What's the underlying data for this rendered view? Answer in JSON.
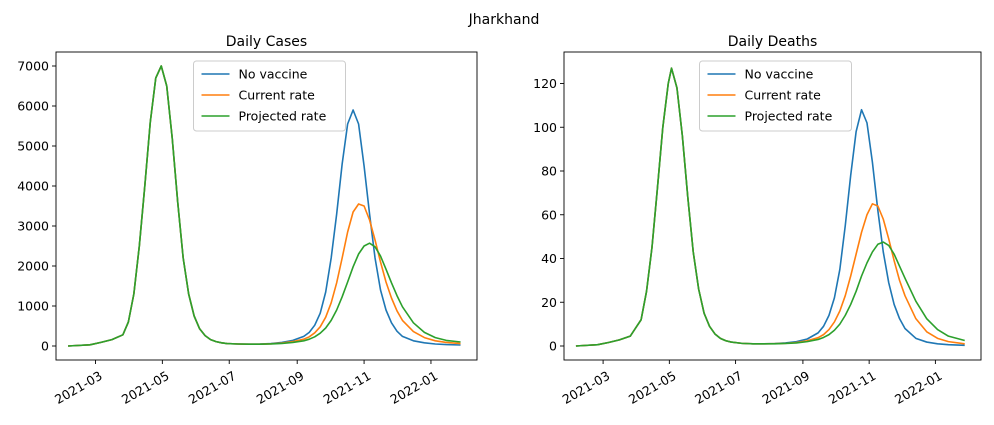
{
  "figure": {
    "suptitle": "Jharkhand"
  },
  "colors": {
    "no_vaccine": "#1f77b4",
    "current_rate": "#ff7f0e",
    "projected_rate": "#2ca02c"
  },
  "chart_data": [
    {
      "type": "line",
      "title": "Daily Cases",
      "xlabel": "",
      "ylabel": "",
      "xlim": [
        "2021-01-24",
        "2022-02-12"
      ],
      "ylim": [
        -350,
        7350
      ],
      "yticks": [
        0,
        1000,
        2000,
        3000,
        4000,
        5000,
        6000,
        7000
      ],
      "xticks": [
        "2021-03-01",
        "2021-05-01",
        "2021-07-01",
        "2021-09-01",
        "2021-11-01",
        "2022-01-01"
      ],
      "xtick_labels": [
        "2021-03",
        "2021-05",
        "2021-07",
        "2021-09",
        "2021-11",
        "2022-01"
      ],
      "legend": "upper-center",
      "grid": false,
      "series": [
        {
          "name": "No vaccine",
          "color": "#1f77b4",
          "x": [
            "2021-02-04",
            "2021-02-24",
            "2021-03-06",
            "2021-03-16",
            "2021-03-26",
            "2021-03-31",
            "2021-04-05",
            "2021-04-10",
            "2021-04-15",
            "2021-04-20",
            "2021-04-25",
            "2021-04-30",
            "2021-05-05",
            "2021-05-10",
            "2021-05-15",
            "2021-05-20",
            "2021-05-25",
            "2021-05-30",
            "2021-06-04",
            "2021-06-09",
            "2021-06-14",
            "2021-06-19",
            "2021-06-24",
            "2021-06-29",
            "2021-07-09",
            "2021-07-19",
            "2021-07-29",
            "2021-08-08",
            "2021-08-18",
            "2021-08-28",
            "2021-09-07",
            "2021-09-12",
            "2021-09-17",
            "2021-09-22",
            "2021-09-27",
            "2021-10-02",
            "2021-10-07",
            "2021-10-12",
            "2021-10-17",
            "2021-10-22",
            "2021-10-27",
            "2021-11-01",
            "2021-11-06",
            "2021-11-11",
            "2021-11-16",
            "2021-11-21",
            "2021-11-26",
            "2021-12-01",
            "2021-12-06",
            "2021-12-16",
            "2021-12-26",
            "2022-01-05",
            "2022-01-15",
            "2022-01-28"
          ],
          "y": [
            0,
            30,
            90,
            160,
            280,
            600,
            1300,
            2500,
            4000,
            5600,
            6700,
            7000,
            6500,
            5200,
            3600,
            2200,
            1300,
            750,
            430,
            260,
            160,
            110,
            80,
            60,
            50,
            45,
            48,
            60,
            90,
            140,
            240,
            340,
            520,
            820,
            1350,
            2200,
            3300,
            4550,
            5550,
            5900,
            5550,
            4500,
            3300,
            2200,
            1400,
            900,
            580,
            370,
            240,
            130,
            80,
            50,
            35,
            25
          ]
        },
        {
          "name": "Current rate",
          "color": "#ff7f0e",
          "x": [
            "2021-02-04",
            "2021-02-24",
            "2021-03-06",
            "2021-03-16",
            "2021-03-26",
            "2021-03-31",
            "2021-04-05",
            "2021-04-10",
            "2021-04-15",
            "2021-04-20",
            "2021-04-25",
            "2021-04-30",
            "2021-05-05",
            "2021-05-10",
            "2021-05-15",
            "2021-05-20",
            "2021-05-25",
            "2021-05-30",
            "2021-06-04",
            "2021-06-09",
            "2021-06-14",
            "2021-06-19",
            "2021-06-24",
            "2021-06-29",
            "2021-07-09",
            "2021-07-19",
            "2021-07-29",
            "2021-08-08",
            "2021-08-18",
            "2021-08-28",
            "2021-09-07",
            "2021-09-12",
            "2021-09-17",
            "2021-09-22",
            "2021-09-27",
            "2021-10-02",
            "2021-10-07",
            "2021-10-12",
            "2021-10-17",
            "2021-10-22",
            "2021-10-27",
            "2021-11-01",
            "2021-11-06",
            "2021-11-11",
            "2021-11-16",
            "2021-11-21",
            "2021-11-26",
            "2021-12-01",
            "2021-12-06",
            "2021-12-16",
            "2021-12-26",
            "2022-01-05",
            "2022-01-15",
            "2022-01-28"
          ],
          "y": [
            0,
            30,
            90,
            160,
            280,
            600,
            1300,
            2500,
            4000,
            5600,
            6700,
            7000,
            6500,
            5200,
            3600,
            2200,
            1300,
            750,
            430,
            260,
            160,
            110,
            80,
            60,
            50,
            45,
            46,
            55,
            75,
            110,
            170,
            230,
            330,
            480,
            720,
            1080,
            1580,
            2200,
            2850,
            3350,
            3550,
            3500,
            3150,
            2650,
            2100,
            1600,
            1200,
            880,
            640,
            360,
            210,
            130,
            90,
            60
          ]
        },
        {
          "name": "Projected rate",
          "color": "#2ca02c",
          "x": [
            "2021-02-04",
            "2021-02-24",
            "2021-03-06",
            "2021-03-16",
            "2021-03-26",
            "2021-03-31",
            "2021-04-05",
            "2021-04-10",
            "2021-04-15",
            "2021-04-20",
            "2021-04-25",
            "2021-04-30",
            "2021-05-05",
            "2021-05-10",
            "2021-05-15",
            "2021-05-20",
            "2021-05-25",
            "2021-05-30",
            "2021-06-04",
            "2021-06-09",
            "2021-06-14",
            "2021-06-19",
            "2021-06-24",
            "2021-06-29",
            "2021-07-09",
            "2021-07-19",
            "2021-07-29",
            "2021-08-08",
            "2021-08-18",
            "2021-08-28",
            "2021-09-07",
            "2021-09-12",
            "2021-09-17",
            "2021-09-22",
            "2021-09-27",
            "2021-10-02",
            "2021-10-07",
            "2021-10-12",
            "2021-10-17",
            "2021-10-22",
            "2021-10-27",
            "2021-11-01",
            "2021-11-06",
            "2021-11-11",
            "2021-11-16",
            "2021-11-21",
            "2021-11-26",
            "2021-12-01",
            "2021-12-06",
            "2021-12-16",
            "2021-12-26",
            "2022-01-05",
            "2022-01-15",
            "2022-01-28"
          ],
          "y": [
            0,
            30,
            90,
            160,
            280,
            600,
            1300,
            2500,
            4000,
            5600,
            6700,
            7000,
            6500,
            5200,
            3600,
            2200,
            1300,
            750,
            430,
            260,
            160,
            110,
            80,
            60,
            50,
            45,
            45,
            52,
            65,
            90,
            130,
            170,
            230,
            320,
            450,
            640,
            900,
            1230,
            1600,
            1980,
            2300,
            2500,
            2570,
            2480,
            2250,
            1920,
            1580,
            1260,
            980,
            580,
            340,
            210,
            140,
            100
          ]
        }
      ]
    },
    {
      "type": "line",
      "title": "Daily Deaths",
      "xlabel": "",
      "ylabel": "",
      "xlim": [
        "2021-01-24",
        "2022-02-12"
      ],
      "ylim": [
        -6.4,
        134.4
      ],
      "yticks": [
        0,
        20,
        40,
        60,
        80,
        100,
        120
      ],
      "xticks": [
        "2021-03-01",
        "2021-05-01",
        "2021-07-01",
        "2021-09-01",
        "2021-11-01",
        "2022-01-01"
      ],
      "xtick_labels": [
        "2021-03",
        "2021-05",
        "2021-07",
        "2021-09",
        "2021-11",
        "2022-01"
      ],
      "legend": "upper-center",
      "grid": false,
      "series": [
        {
          "name": "No vaccine",
          "color": "#1f77b4",
          "x": [
            "2021-02-04",
            "2021-02-24",
            "2021-03-06",
            "2021-03-16",
            "2021-03-26",
            "2021-04-05",
            "2021-04-10",
            "2021-04-15",
            "2021-04-20",
            "2021-04-25",
            "2021-04-30",
            "2021-05-03",
            "2021-05-08",
            "2021-05-13",
            "2021-05-18",
            "2021-05-23",
            "2021-05-28",
            "2021-06-02",
            "2021-06-07",
            "2021-06-12",
            "2021-06-17",
            "2021-06-22",
            "2021-06-27",
            "2021-07-07",
            "2021-07-17",
            "2021-07-27",
            "2021-08-06",
            "2021-08-16",
            "2021-08-26",
            "2021-09-05",
            "2021-09-15",
            "2021-09-20",
            "2021-09-25",
            "2021-09-30",
            "2021-10-05",
            "2021-10-10",
            "2021-10-15",
            "2021-10-20",
            "2021-10-25",
            "2021-10-30",
            "2021-11-04",
            "2021-11-09",
            "2021-11-14",
            "2021-11-19",
            "2021-11-24",
            "2021-11-29",
            "2021-12-04",
            "2021-12-14",
            "2021-12-24",
            "2022-01-03",
            "2022-01-13",
            "2022-01-28"
          ],
          "y": [
            0,
            0.6,
            1.6,
            2.8,
            4.5,
            12,
            25,
            45,
            72,
            100,
            120,
            127,
            118,
            96,
            68,
            43,
            26,
            15,
            9,
            5.5,
            3.5,
            2.4,
            1.8,
            1.2,
            1.0,
            1.0,
            1.1,
            1.4,
            2.0,
            3.2,
            6,
            9,
            14,
            22,
            35,
            55,
            78,
            98,
            108,
            102,
            84,
            62,
            43,
            29,
            19,
            12.5,
            8,
            3.5,
            1.8,
            1.0,
            0.6,
            0.3
          ]
        },
        {
          "name": "Current rate",
          "color": "#ff7f0e",
          "x": [
            "2021-02-04",
            "2021-02-24",
            "2021-03-06",
            "2021-03-16",
            "2021-03-26",
            "2021-04-05",
            "2021-04-10",
            "2021-04-15",
            "2021-04-20",
            "2021-04-25",
            "2021-04-30",
            "2021-05-03",
            "2021-05-08",
            "2021-05-13",
            "2021-05-18",
            "2021-05-23",
            "2021-05-28",
            "2021-06-02",
            "2021-06-07",
            "2021-06-12",
            "2021-06-17",
            "2021-06-22",
            "2021-06-27",
            "2021-07-07",
            "2021-07-17",
            "2021-07-27",
            "2021-08-06",
            "2021-08-16",
            "2021-08-26",
            "2021-09-05",
            "2021-09-15",
            "2021-09-20",
            "2021-09-25",
            "2021-09-30",
            "2021-10-05",
            "2021-10-10",
            "2021-10-15",
            "2021-10-20",
            "2021-10-25",
            "2021-10-30",
            "2021-11-04",
            "2021-11-09",
            "2021-11-14",
            "2021-11-19",
            "2021-11-24",
            "2021-11-29",
            "2021-12-04",
            "2021-12-14",
            "2021-12-24",
            "2022-01-03",
            "2022-01-13",
            "2022-01-28"
          ],
          "y": [
            0,
            0.6,
            1.6,
            2.8,
            4.5,
            12,
            25,
            45,
            72,
            100,
            120,
            127,
            118,
            96,
            68,
            43,
            26,
            15,
            9,
            5.5,
            3.5,
            2.4,
            1.8,
            1.2,
            1.0,
            1.0,
            1.05,
            1.2,
            1.6,
            2.4,
            3.8,
            5.2,
            7.5,
            11,
            16,
            23,
            32,
            42,
            52,
            60,
            65,
            64,
            58,
            49,
            39,
            30,
            23,
            12.5,
            6.5,
            3.5,
            2.0,
            1.0
          ]
        },
        {
          "name": "Projected rate",
          "color": "#2ca02c",
          "x": [
            "2021-02-04",
            "2021-02-24",
            "2021-03-06",
            "2021-03-16",
            "2021-03-26",
            "2021-04-05",
            "2021-04-10",
            "2021-04-15",
            "2021-04-20",
            "2021-04-25",
            "2021-04-30",
            "2021-05-03",
            "2021-05-08",
            "2021-05-13",
            "2021-05-18",
            "2021-05-23",
            "2021-05-28",
            "2021-06-02",
            "2021-06-07",
            "2021-06-12",
            "2021-06-17",
            "2021-06-22",
            "2021-06-27",
            "2021-07-07",
            "2021-07-17",
            "2021-07-27",
            "2021-08-06",
            "2021-08-16",
            "2021-08-26",
            "2021-09-05",
            "2021-09-15",
            "2021-09-20",
            "2021-09-25",
            "2021-09-30",
            "2021-10-05",
            "2021-10-10",
            "2021-10-15",
            "2021-10-20",
            "2021-10-25",
            "2021-10-30",
            "2021-11-04",
            "2021-11-09",
            "2021-11-14",
            "2021-11-19",
            "2021-11-24",
            "2021-11-29",
            "2021-12-04",
            "2021-12-14",
            "2021-12-24",
            "2022-01-03",
            "2022-01-13",
            "2022-01-28"
          ],
          "y": [
            0,
            0.6,
            1.6,
            2.8,
            4.5,
            12,
            25,
            45,
            72,
            100,
            120,
            127,
            118,
            96,
            68,
            43,
            26,
            15,
            9,
            5.5,
            3.5,
            2.4,
            1.8,
            1.2,
            1.0,
            1.0,
            1.0,
            1.15,
            1.4,
            2.0,
            3.0,
            3.9,
            5.2,
            7.2,
            10,
            14,
            19,
            25,
            32,
            38,
            43,
            46.5,
            47.5,
            46,
            42,
            36.5,
            31,
            20.5,
            12.5,
            7.5,
            4.5,
            2.5
          ]
        }
      ]
    }
  ]
}
